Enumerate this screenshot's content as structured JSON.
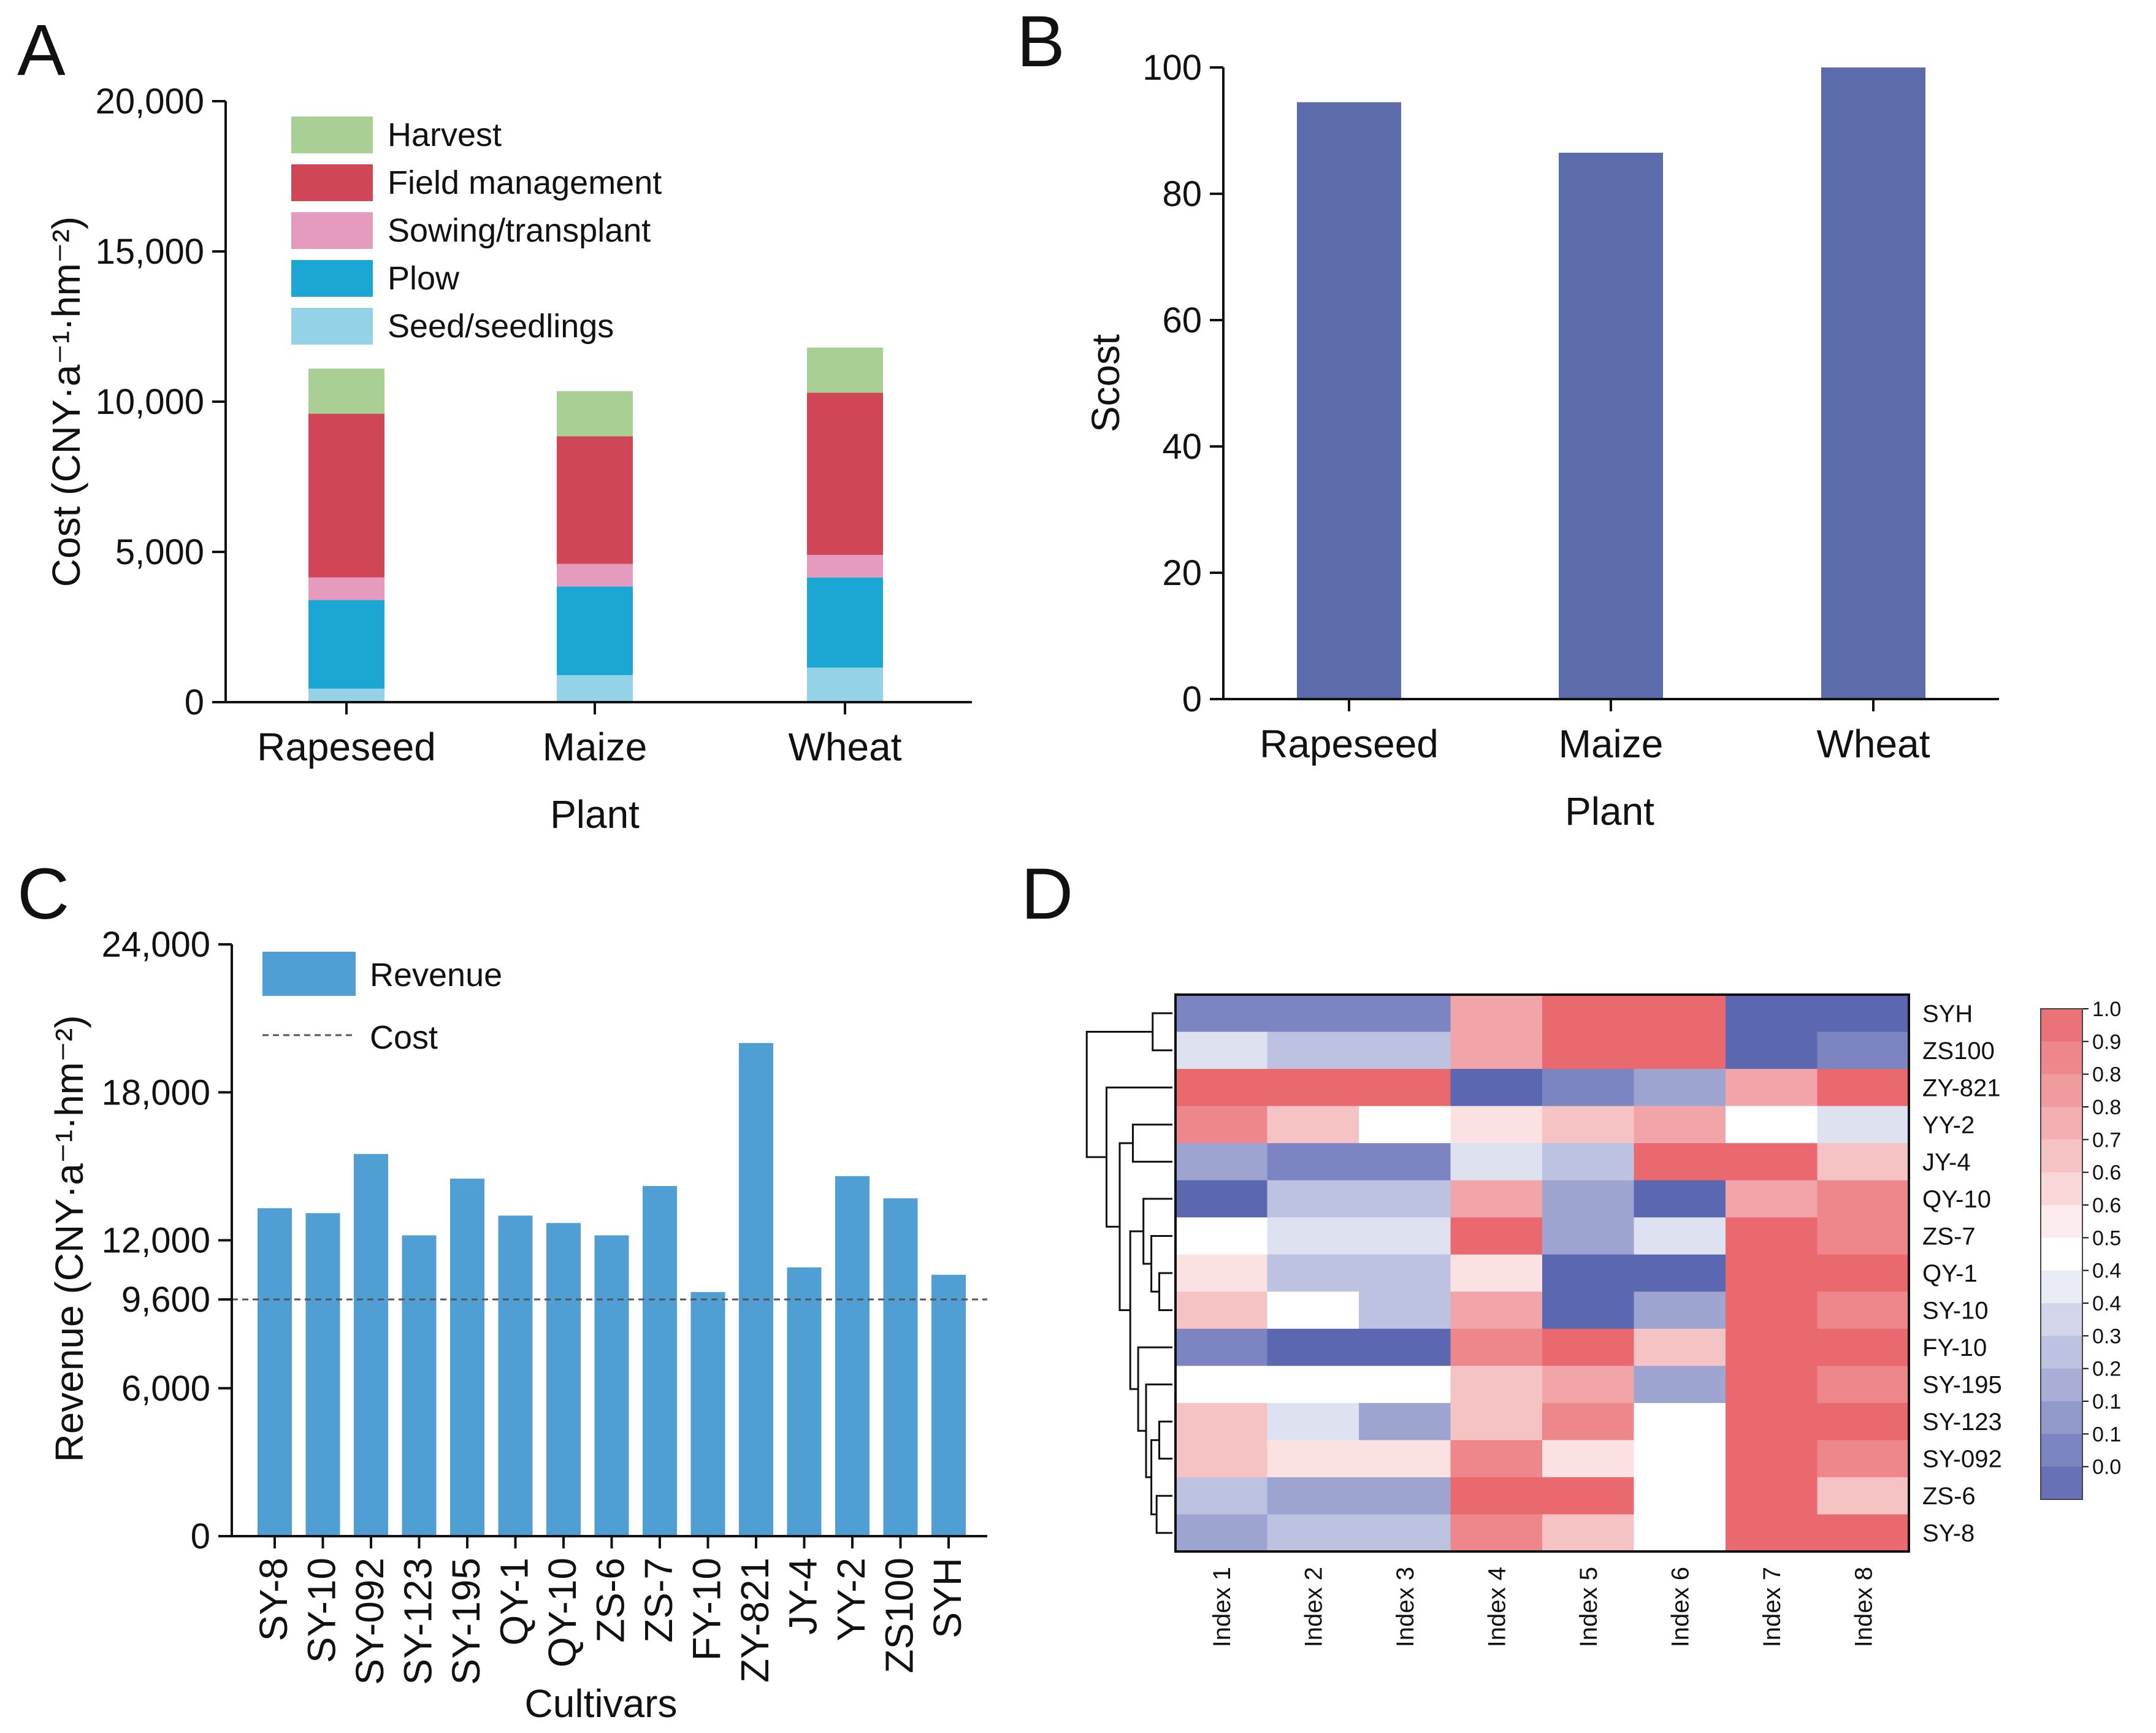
{
  "panels": {
    "A": {
      "letter": "A"
    },
    "B": {
      "letter": "B"
    },
    "C": {
      "letter": "C"
    },
    "D": {
      "letter": "D"
    }
  },
  "chart_data": [
    {
      "id": "A",
      "type": "bar",
      "stacked": true,
      "title": "",
      "xlabel": "Plant",
      "ylabel": "Cost (CNY·a⁻¹·hm⁻²)",
      "ylim": [
        0,
        20000
      ],
      "yticks": [
        "0",
        "5,000",
        "10,000",
        "15,000",
        "20,000"
      ],
      "ytick_values": [
        0,
        5000,
        10000,
        15000,
        20000
      ],
      "categories": [
        "Rapeseed",
        "Maize",
        "Wheat"
      ],
      "series": [
        {
          "name": "Seed/seedlings",
          "color": "#94d2e8",
          "values": [
            450,
            900,
            1150
          ]
        },
        {
          "name": "Plow",
          "color": "#1ca6d4",
          "values": [
            2950,
            2950,
            3000
          ]
        },
        {
          "name": "Sowing/transplant",
          "color": "#e59bbe",
          "values": [
            750,
            750,
            750
          ]
        },
        {
          "name": "Field management",
          "color": "#d14656",
          "values": [
            5450,
            4250,
            5400
          ]
        },
        {
          "name": "Harvest",
          "color": "#a9cf95",
          "values": [
            1500,
            1500,
            1500
          ]
        }
      ],
      "legend_order": [
        "Harvest",
        "Field management",
        "Sowing/transplant",
        "Plow",
        "Seed/seedlings"
      ],
      "legend_position": "top-left"
    },
    {
      "id": "B",
      "type": "bar",
      "title": "",
      "xlabel": "Plant",
      "ylabel": "Scost",
      "ylim": [
        0,
        100
      ],
      "yticks": [
        "0",
        "20",
        "40",
        "60",
        "80",
        "100"
      ],
      "ytick_values": [
        0,
        20,
        40,
        60,
        80,
        100
      ],
      "categories": [
        "Rapeseed",
        "Maize",
        "Wheat"
      ],
      "values": [
        94.5,
        86.5,
        100
      ],
      "color": "#5c6bab"
    },
    {
      "id": "C",
      "type": "bar",
      "title": "",
      "xlabel": "Cultivars",
      "ylabel": "Revenue (CNY·a⁻¹·hm⁻²)",
      "ylim": [
        0,
        24000
      ],
      "yticks": [
        "0",
        "6,000",
        "9,600",
        "12,000",
        "18,000",
        "24,000"
      ],
      "ytick_values": [
        0,
        6000,
        9600,
        12000,
        18000,
        24000
      ],
      "categories": [
        "SY-8",
        "SY-10",
        "SY-092",
        "SY-123",
        "SY-195",
        "QY-1",
        "QY-10",
        "ZS-6",
        "ZS-7",
        "FY-10",
        "ZY-821",
        "JY-4",
        "YY-2",
        "ZS100",
        "SYH"
      ],
      "series": [
        {
          "name": "Revenue",
          "color": "#4f9fd4",
          "values": [
            13300,
            13100,
            15500,
            12200,
            14500,
            13000,
            12700,
            12200,
            14200,
            9900,
            20000,
            10900,
            14600,
            13700,
            10600
          ]
        }
      ],
      "reference_line": {
        "name": "Cost",
        "value": 9600,
        "style": "dashed"
      },
      "legend_position": "top-left"
    },
    {
      "id": "D",
      "type": "heatmap",
      "title": "",
      "columns": [
        "Index 1",
        "Index 2",
        "Index 3",
        "Index 4",
        "Index 5",
        "Index 6",
        "Index 7",
        "Index 8"
      ],
      "rows": [
        "SYH",
        "ZS100",
        "ZY-821",
        "YY-2",
        "JY-4",
        "QY-10",
        "ZS-7",
        "QY-1",
        "SY-10",
        "FY-10",
        "SY-195",
        "SY-123",
        "SY-092",
        "ZS-6",
        "SY-8"
      ],
      "values": [
        [
          0.1,
          0.1,
          0.1,
          0.8,
          1.0,
          1.0,
          0.0,
          0.0
        ],
        [
          0.4,
          0.3,
          0.3,
          0.8,
          1.0,
          1.0,
          0.0,
          0.1
        ],
        [
          1.0,
          1.0,
          1.0,
          0.0,
          0.1,
          0.2,
          0.8,
          1.0
        ],
        [
          0.9,
          0.7,
          0.5,
          0.6,
          0.7,
          0.8,
          0.5,
          0.4
        ],
        [
          0.2,
          0.1,
          0.1,
          0.4,
          0.3,
          1.0,
          1.0,
          0.7
        ],
        [
          0.0,
          0.3,
          0.3,
          0.8,
          0.2,
          0.0,
          0.8,
          0.9
        ],
        [
          0.5,
          0.4,
          0.4,
          1.0,
          0.2,
          0.4,
          1.0,
          0.9
        ],
        [
          0.6,
          0.3,
          0.3,
          0.6,
          0.0,
          0.0,
          1.0,
          1.0
        ],
        [
          0.7,
          0.5,
          0.3,
          0.8,
          0.0,
          0.2,
          1.0,
          0.9
        ],
        [
          0.1,
          0.0,
          0.0,
          0.9,
          1.0,
          0.7,
          1.0,
          1.0
        ],
        [
          0.5,
          0.5,
          0.5,
          0.7,
          0.8,
          0.2,
          1.0,
          0.9
        ],
        [
          0.7,
          0.4,
          0.2,
          0.7,
          0.9,
          0.5,
          1.0,
          1.0
        ],
        [
          0.7,
          0.6,
          0.6,
          0.9,
          0.6,
          0.5,
          1.0,
          0.9
        ],
        [
          0.3,
          0.2,
          0.2,
          1.0,
          1.0,
          0.5,
          1.0,
          0.7
        ],
        [
          0.2,
          0.3,
          0.3,
          0.9,
          0.7,
          0.5,
          1.0,
          1.0
        ]
      ],
      "colorbar": {
        "labels": [
          "1.0",
          "0.9",
          "0.8",
          "0.8",
          "0.7",
          "0.6",
          "0.6",
          "0.5",
          "0.4",
          "0.4",
          "0.3",
          "0.2",
          "0.1",
          "0.1",
          "0.0"
        ],
        "low_color": "#5b67b1",
        "mid_color": "#ffffff",
        "high_color": "#e9696e"
      },
      "dendrogram": "row"
    }
  ]
}
